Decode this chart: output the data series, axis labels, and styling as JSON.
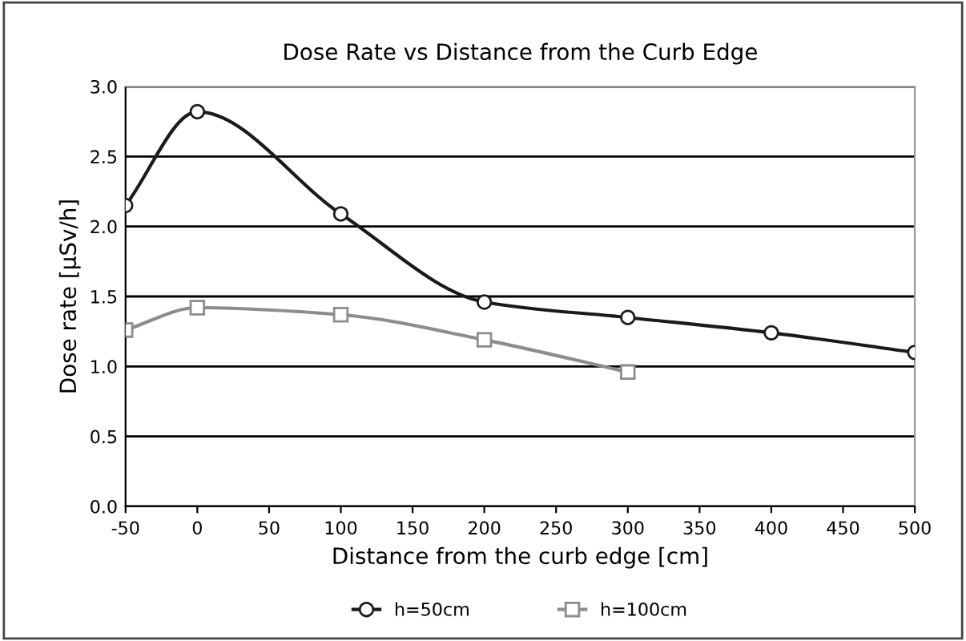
{
  "chart_data": {
    "type": "line",
    "title": "Dose Rate vs Distance from the Curb Edge",
    "xlabel": "Distance from the curb edge [cm]",
    "ylabel": "Dose rate [µSv/h]",
    "series": [
      {
        "name": "h=50cm",
        "color": "#1a1a1a",
        "marker": "circle",
        "x": [
          -50,
          0,
          100,
          200,
          300,
          400,
          500
        ],
        "values": [
          2.15,
          2.82,
          2.09,
          1.46,
          1.35,
          1.24,
          1.1
        ]
      },
      {
        "name": "h=100cm",
        "color": "#8c8c8c",
        "marker": "square",
        "x": [
          -50,
          0,
          100,
          200,
          300
        ],
        "values": [
          1.26,
          1.42,
          1.37,
          1.19,
          0.96
        ]
      }
    ],
    "xlim": [
      -50,
      500
    ],
    "xticks": [
      {
        "value": -50,
        "label": "-50"
      },
      0,
      50,
      100,
      150,
      200,
      250,
      300,
      350,
      400,
      450,
      500
    ],
    "ylim": [
      0,
      3
    ],
    "yticks": [
      {
        "value": 0,
        "label": "0.0"
      },
      {
        "value": 0.5,
        "label": "0.5"
      },
      {
        "value": 1,
        "label": "1.0"
      },
      {
        "value": 1.5,
        "label": "1.5"
      },
      {
        "value": 2,
        "label": "2.0"
      },
      {
        "value": 2.5,
        "label": "2.5"
      },
      {
        "value": 3,
        "label": "3.0"
      }
    ],
    "grid": "y",
    "legend": "bottom",
    "line_style": "solid"
  }
}
